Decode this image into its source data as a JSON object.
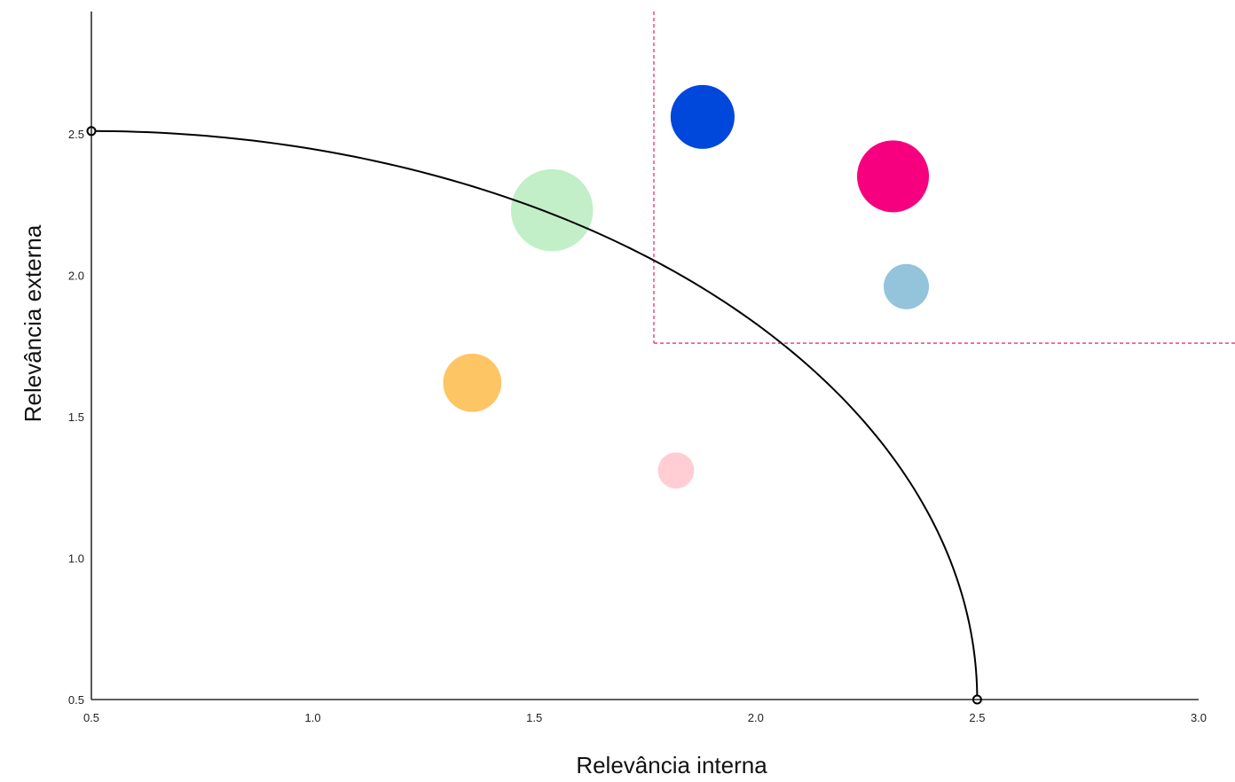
{
  "chart_data": {
    "type": "scatter",
    "subtype": "bubble",
    "xlabel": "Relevância interna",
    "ylabel": "Relevância externa",
    "xlim": [
      0.5,
      3.0
    ],
    "ylim": [
      0.5,
      2.9
    ],
    "x_ticks": [
      0.5,
      1.0,
      1.5,
      2.0,
      2.5,
      3.0
    ],
    "y_ticks": [
      0.5,
      1.0,
      1.5,
      2.0,
      2.5
    ],
    "x_tick_labels": [
      "0.5",
      "1.0",
      "1.5",
      "2.0",
      "2.5",
      "3.0"
    ],
    "y_tick_labels": [
      "0.5",
      "1.0",
      "1.5",
      "2.0",
      "2.5"
    ],
    "grid": false,
    "legend": "none",
    "bubbles": [
      {
        "x": 1.54,
        "y": 2.23,
        "r": 0.145,
        "color": "#c2eec8"
      },
      {
        "x": 1.88,
        "y": 2.56,
        "r": 0.113,
        "color": "#0047db"
      },
      {
        "x": 2.31,
        "y": 2.35,
        "r": 0.127,
        "color": "#f7007f"
      },
      {
        "x": 2.34,
        "y": 1.96,
        "r": 0.08,
        "color": "#94c3dc"
      },
      {
        "x": 1.36,
        "y": 1.62,
        "r": 0.103,
        "color": "#fec565"
      },
      {
        "x": 1.82,
        "y": 1.31,
        "r": 0.064,
        "color": "#ffcdd3"
      }
    ],
    "curve": {
      "type": "quarter-ellipse",
      "center": [
        0.5,
        0.5
      ],
      "endpoints": [
        [
          0.5,
          2.51
        ],
        [
          2.5,
          0.5
        ]
      ],
      "color": "#000000"
    },
    "threshold": {
      "x": 1.77,
      "y": 1.76,
      "style": "dashed",
      "color": "#e8336e"
    }
  }
}
